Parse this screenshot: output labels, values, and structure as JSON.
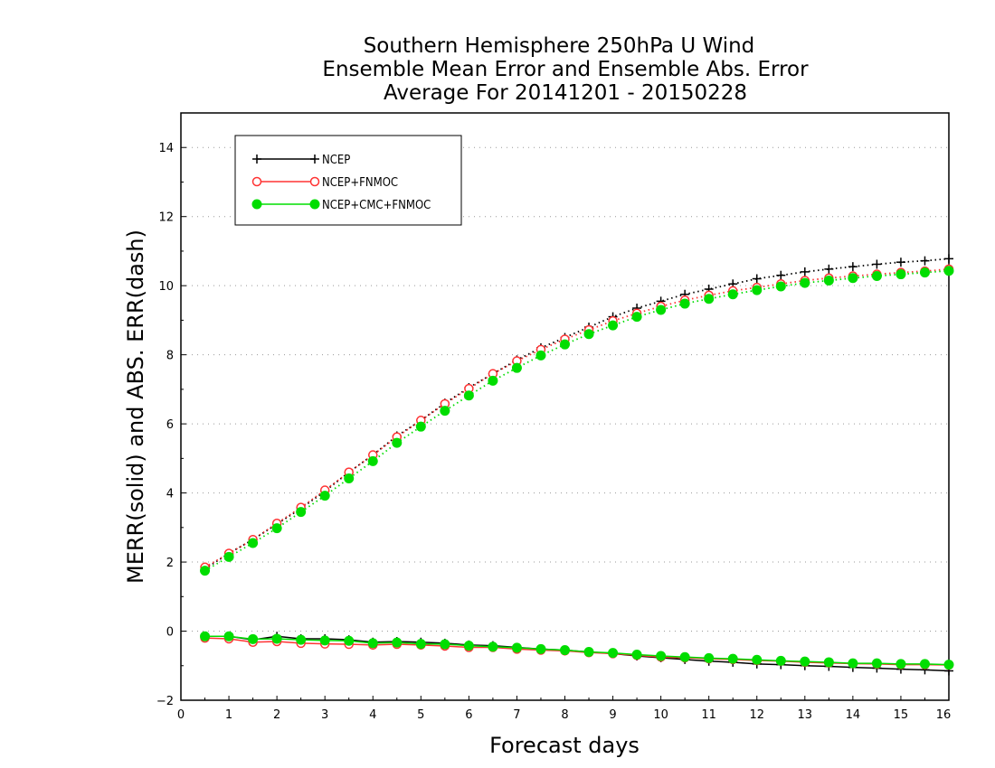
{
  "chart_data": {
    "type": "line",
    "title_lines": [
      "Southern Hemisphere 250hPa U Wind",
      "Ensemble Mean Error and Ensemble Abs. Error",
      "Average For 20141201 - 20150228"
    ],
    "xlabel": "Forecast days",
    "ylabel": "MERR(solid) and ABS. ERR(dash)",
    "xlim": [
      0,
      16
    ],
    "ylim": [
      -2,
      15
    ],
    "xticks": [
      0,
      1,
      2,
      3,
      4,
      5,
      6,
      7,
      8,
      9,
      10,
      11,
      12,
      13,
      14,
      15,
      16
    ],
    "yticks": [
      -2,
      0,
      2,
      4,
      6,
      8,
      10,
      12,
      14
    ],
    "grid": "horizontal-dotted",
    "legend_position": "top-left",
    "x": [
      0.5,
      1,
      1.5,
      2,
      2.5,
      3,
      3.5,
      4,
      4.5,
      5,
      5.5,
      6,
      6.5,
      7,
      7.5,
      8,
      8.5,
      9,
      9.5,
      10,
      10.5,
      11,
      11.5,
      12,
      12.5,
      13,
      13.5,
      14,
      14.5,
      15,
      15.5,
      16
    ],
    "series": [
      {
        "name": "NCEP",
        "color": "#000000",
        "marker": "plus",
        "merr": [
          -0.15,
          -0.15,
          -0.25,
          -0.15,
          -0.22,
          -0.22,
          -0.25,
          -0.32,
          -0.3,
          -0.32,
          -0.35,
          -0.4,
          -0.42,
          -0.47,
          -0.52,
          -0.55,
          -0.6,
          -0.65,
          -0.72,
          -0.77,
          -0.82,
          -0.87,
          -0.9,
          -0.95,
          -0.97,
          -1.0,
          -1.02,
          -1.05,
          -1.07,
          -1.1,
          -1.12,
          -1.15
        ],
        "abs_err": [
          1.8,
          2.25,
          2.65,
          3.1,
          3.55,
          4.05,
          4.6,
          5.1,
          5.65,
          6.1,
          6.6,
          7.05,
          7.45,
          7.85,
          8.2,
          8.5,
          8.8,
          9.1,
          9.35,
          9.55,
          9.75,
          9.9,
          10.05,
          10.2,
          10.3,
          10.4,
          10.48,
          10.55,
          10.62,
          10.68,
          10.72,
          10.78
        ]
      },
      {
        "name": "NCEP+FNMOC",
        "color": "#ff3333",
        "marker": "open-circle",
        "merr": [
          -0.2,
          -0.22,
          -0.32,
          -0.3,
          -0.35,
          -0.37,
          -0.38,
          -0.4,
          -0.38,
          -0.4,
          -0.43,
          -0.47,
          -0.47,
          -0.52,
          -0.55,
          -0.57,
          -0.62,
          -0.65,
          -0.7,
          -0.75,
          -0.77,
          -0.8,
          -0.82,
          -0.85,
          -0.87,
          -0.9,
          -0.92,
          -0.94,
          -0.95,
          -0.97,
          -0.97,
          -0.98
        ],
        "abs_err": [
          1.85,
          2.25,
          2.65,
          3.12,
          3.58,
          4.08,
          4.6,
          5.1,
          5.62,
          6.1,
          6.58,
          7.02,
          7.45,
          7.82,
          8.15,
          8.45,
          8.72,
          8.98,
          9.2,
          9.4,
          9.58,
          9.72,
          9.85,
          9.95,
          10.05,
          10.15,
          10.22,
          10.28,
          10.33,
          10.38,
          10.42,
          10.48
        ]
      },
      {
        "name": "NCEP+CMC+FNMOC",
        "color": "#00dd00",
        "marker": "filled-circle",
        "merr": [
          -0.15,
          -0.15,
          -0.23,
          -0.22,
          -0.25,
          -0.27,
          -0.28,
          -0.35,
          -0.33,
          -0.37,
          -0.38,
          -0.42,
          -0.45,
          -0.48,
          -0.52,
          -0.55,
          -0.6,
          -0.63,
          -0.68,
          -0.72,
          -0.75,
          -0.78,
          -0.8,
          -0.83,
          -0.86,
          -0.88,
          -0.9,
          -0.93,
          -0.93,
          -0.95,
          -0.95,
          -0.97
        ],
        "abs_err": [
          1.75,
          2.15,
          2.55,
          2.98,
          3.45,
          3.92,
          4.42,
          4.92,
          5.45,
          5.92,
          6.38,
          6.82,
          7.25,
          7.62,
          7.98,
          8.3,
          8.6,
          8.85,
          9.1,
          9.3,
          9.48,
          9.62,
          9.75,
          9.87,
          9.98,
          10.08,
          10.15,
          10.22,
          10.28,
          10.33,
          10.38,
          10.43
        ]
      }
    ]
  }
}
